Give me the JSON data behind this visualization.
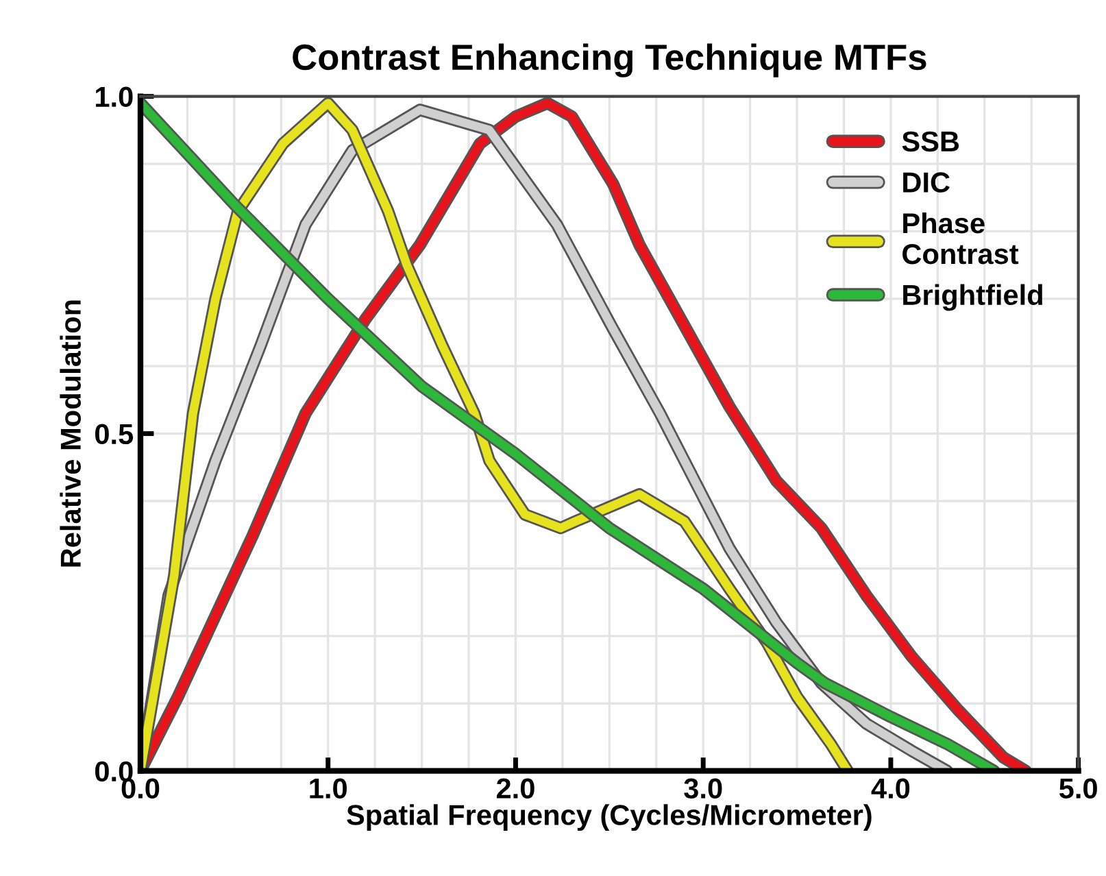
{
  "chart_data": {
    "type": "line",
    "title": "Contrast Enhancing Technique MTFs",
    "xlabel": "Spatial Frequency (Cycles/Micrometer)",
    "ylabel": "Relative Modulation",
    "xlim": [
      0,
      5
    ],
    "ylim": [
      0,
      1
    ],
    "xticks": [
      {
        "value": 0,
        "label": "0.0"
      },
      {
        "value": 0.25,
        "label": null
      },
      {
        "value": 0.5,
        "label": null
      },
      {
        "value": 0.75,
        "label": null
      },
      {
        "value": 1,
        "label": "1.0"
      },
      {
        "value": 1.25,
        "label": null
      },
      {
        "value": 1.5,
        "label": null
      },
      {
        "value": 1.75,
        "label": null
      },
      {
        "value": 2,
        "label": "2.0"
      },
      {
        "value": 2.25,
        "label": null
      },
      {
        "value": 2.5,
        "label": null
      },
      {
        "value": 2.75,
        "label": null
      },
      {
        "value": 3,
        "label": "3.0"
      },
      {
        "value": 3.25,
        "label": null
      },
      {
        "value": 3.5,
        "label": null
      },
      {
        "value": 3.75,
        "label": null
      },
      {
        "value": 4,
        "label": "4.0"
      },
      {
        "value": 4.25,
        "label": null
      },
      {
        "value": 4.5,
        "label": null
      },
      {
        "value": 4.75,
        "label": null
      },
      {
        "value": 5,
        "label": "5.0"
      }
    ],
    "yticks": [
      {
        "value": 0,
        "label": "0.0"
      },
      {
        "value": 0.1,
        "label": null
      },
      {
        "value": 0.2,
        "label": null
      },
      {
        "value": 0.3,
        "label": null
      },
      {
        "value": 0.4,
        "label": null
      },
      {
        "value": 0.5,
        "label": "0.5"
      },
      {
        "value": 0.6,
        "label": null
      },
      {
        "value": 0.7,
        "label": null
      },
      {
        "value": 0.8,
        "label": null
      },
      {
        "value": 0.9,
        "label": null
      },
      {
        "value": 1,
        "label": "1.0"
      }
    ],
    "grid": true,
    "legend": "top right",
    "marker": "none",
    "line_style": "solid",
    "series": [
      {
        "name": "SSB",
        "color": "#e8141c",
        "x": [
          0,
          0.2,
          0.4,
          0.6,
          0.88,
          1.2,
          1.49,
          1.81,
          2.0,
          2.17,
          2.3,
          2.52,
          2.66,
          2.9,
          3.14,
          3.39,
          3.63,
          3.87,
          4.11,
          4.36,
          4.6,
          4.72
        ],
        "values": [
          0,
          0.11,
          0.23,
          0.35,
          0.53,
          0.67,
          0.78,
          0.93,
          0.97,
          0.99,
          0.97,
          0.87,
          0.78,
          0.66,
          0.54,
          0.43,
          0.36,
          0.26,
          0.17,
          0.09,
          0.02,
          0
        ]
      },
      {
        "name": "DIC",
        "color": "#d0d0d0",
        "x": [
          0,
          0.15,
          0.3,
          0.4,
          0.64,
          0.88,
          1.13,
          1.49,
          1.86,
          2.22,
          2.51,
          2.77,
          3.14,
          3.39,
          3.63,
          3.87,
          4.11,
          4.3
        ],
        "values": [
          0,
          0.26,
          0.38,
          0.46,
          0.63,
          0.81,
          0.92,
          0.98,
          0.95,
          0.81,
          0.66,
          0.53,
          0.33,
          0.22,
          0.13,
          0.07,
          0.03,
          0
        ]
      },
      {
        "name": "Phase\nContrast",
        "color": "#e6e21e",
        "x": [
          0,
          0.18,
          0.28,
          0.4,
          0.52,
          0.76,
          1.0,
          1.13,
          1.32,
          1.42,
          1.61,
          1.78,
          1.86,
          2.05,
          2.24,
          2.32,
          2.66,
          2.9,
          3.14,
          3.34,
          3.5,
          3.68,
          3.77
        ],
        "values": [
          0,
          0.29,
          0.53,
          0.7,
          0.83,
          0.93,
          0.99,
          0.95,
          0.83,
          0.75,
          0.63,
          0.53,
          0.46,
          0.38,
          0.36,
          0.37,
          0.41,
          0.37,
          0.27,
          0.19,
          0.11,
          0.04,
          0
        ]
      },
      {
        "name": "Brightfield",
        "color": "#2db83a",
        "x": [
          0,
          0.5,
          1.0,
          1.5,
          2.0,
          2.5,
          3.0,
          3.5,
          3.65,
          4.0,
          4.3,
          4.55
        ],
        "values": [
          0.99,
          0.84,
          0.7,
          0.57,
          0.47,
          0.36,
          0.27,
          0.16,
          0.13,
          0.08,
          0.04,
          0
        ]
      }
    ]
  }
}
